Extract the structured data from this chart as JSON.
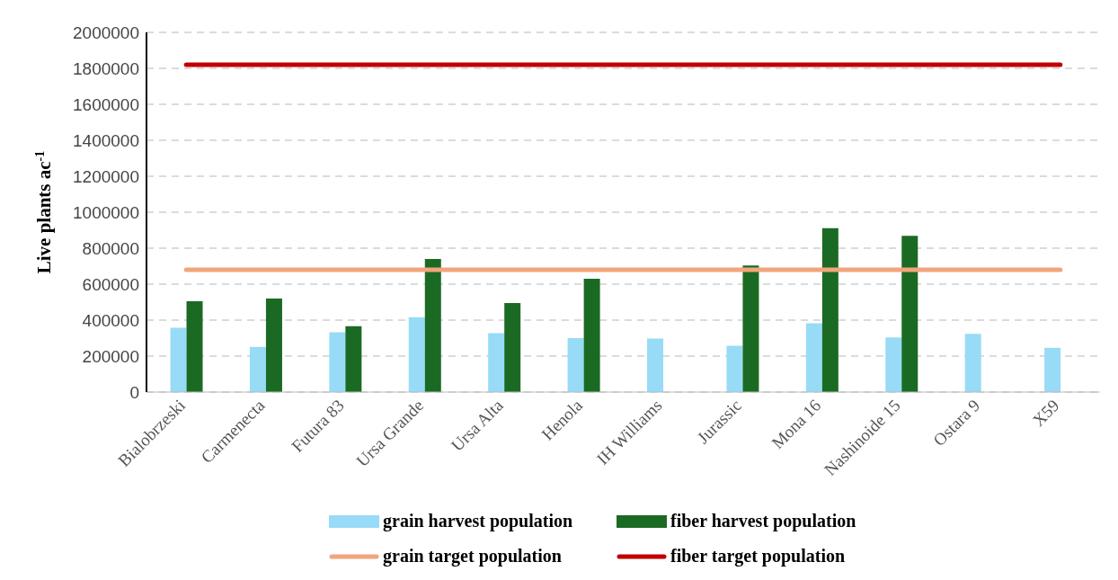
{
  "chart_data": {
    "type": "bar",
    "ylabel": "Live plants ac$^{-1}$",
    "categories": [
      "Bialobrzeski",
      "Carmenecta",
      "Futura 83",
      "Ursa Grande",
      "Ursa Alta",
      "Henola",
      "IH Williams",
      "Jurassic",
      "Mona 16",
      "Nashinoide 15",
      "Ostara 9",
      "X59"
    ],
    "series": [
      {
        "name": "grain harvest population",
        "color": "#97dbf7",
        "values": [
          357000,
          251000,
          333000,
          416000,
          328000,
          300000,
          298000,
          257000,
          383000,
          304000,
          324000,
          246000
        ]
      },
      {
        "name": "fiber harvest population",
        "color": "#1b6a23",
        "values": [
          505000,
          520000,
          366000,
          740000,
          495000,
          630000,
          null,
          704000,
          911000,
          869000,
          null,
          null
        ]
      },
      {
        "name": "grain target population",
        "type": "line",
        "color": "#f2a57c",
        "values": [
          680000,
          680000,
          680000,
          680000,
          680000,
          680000,
          680000,
          680000,
          680000,
          680000,
          680000,
          680000
        ]
      },
      {
        "name": "fiber target population",
        "type": "line",
        "color": "#c00000",
        "values": [
          1820000,
          1820000,
          1820000,
          1820000,
          1820000,
          1820000,
          1820000,
          1820000,
          1820000,
          1820000,
          1820000,
          1820000
        ]
      }
    ],
    "ylim": [
      0,
      2000000
    ],
    "yticks": [
      0,
      200000,
      400000,
      600000,
      800000,
      1000000,
      1200000,
      1400000,
      1600000,
      1800000,
      2000000
    ],
    "grid": "y",
    "legend": "bottom",
    "marker": "none"
  }
}
